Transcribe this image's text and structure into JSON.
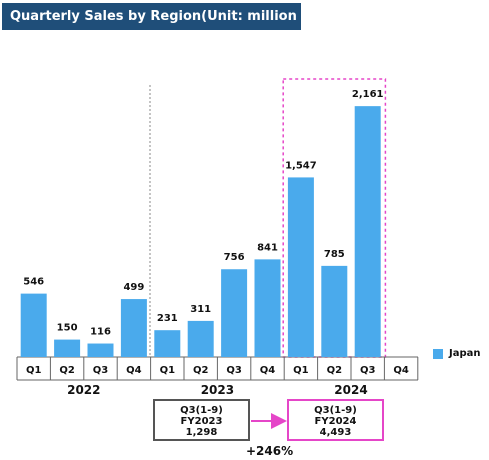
{
  "title": "Quarterly Sales by Region(Unit: million yen)",
  "legend": {
    "label": "Japan",
    "color": "#4aaaec"
  },
  "chart_data": {
    "type": "bar",
    "title": "Quarterly Sales by Region(Unit: million yen)",
    "series": [
      {
        "name": "Japan",
        "color": "#4aaaec",
        "values": [
          546,
          150,
          116,
          499,
          231,
          311,
          756,
          841,
          1547,
          785,
          2161,
          null
        ]
      }
    ],
    "value_labels": [
      "546",
      "150",
      "116",
      "499",
      "231",
      "311",
      "756",
      "841",
      "1,547",
      "785",
      "2,161",
      ""
    ],
    "categories": [
      "Q1",
      "Q2",
      "Q3",
      "Q4",
      "Q1",
      "Q2",
      "Q3",
      "Q4",
      "Q1",
      "Q2",
      "Q3",
      "Q4"
    ],
    "groups": [
      {
        "label": "2022",
        "start": 0,
        "end": 3
      },
      {
        "label": "2023",
        "start": 4,
        "end": 7
      },
      {
        "label": "2024",
        "start": 8,
        "end": 11
      }
    ],
    "highlight_range": [
      8,
      10
    ],
    "ylim": [
      0,
      2300
    ],
    "grid": false,
    "legend_position": "right"
  },
  "comparison": {
    "left_box": [
      "Q3(1-9)",
      "FY2023",
      "1,298"
    ],
    "right_box": [
      "Q3(1-9)",
      "FY2024",
      "4,493"
    ],
    "growth": "+246%"
  }
}
